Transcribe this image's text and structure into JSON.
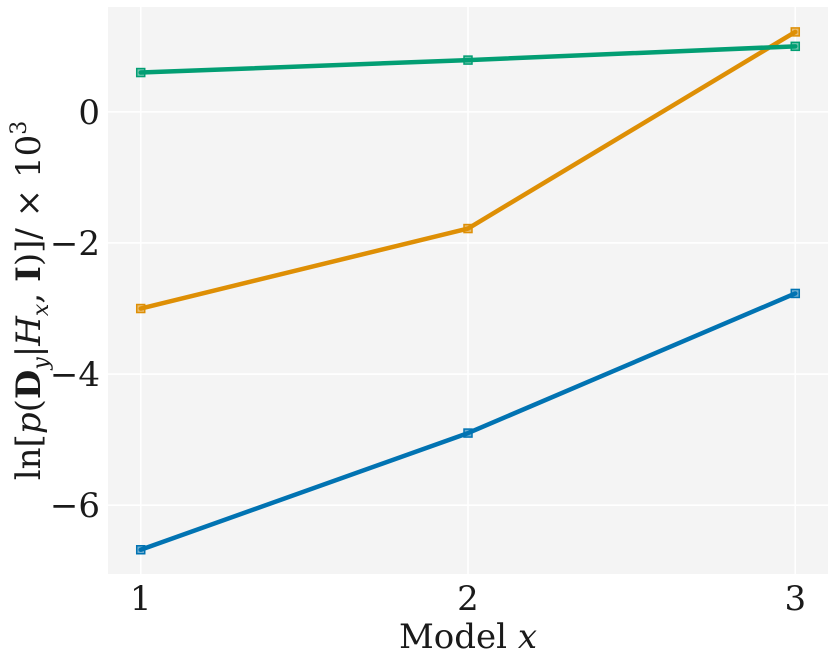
{
  "chart_data": {
    "type": "line",
    "xlabel": "Model x",
    "ylabel": "ln[p(D_y|H_x, I)]/ × 10^3",
    "x": [
      1,
      2,
      3
    ],
    "xticks": [
      1,
      2,
      3
    ],
    "xtick_labels": [
      "1",
      "2",
      "3"
    ],
    "xlim": [
      0.9,
      3.1
    ],
    "yticks": [
      -6,
      -4,
      -2,
      0
    ],
    "ytick_labels": [
      "−6",
      "−4",
      "−2",
      "0"
    ],
    "ylim": [
      -7.05,
      1.6
    ],
    "grid": true,
    "legend": false,
    "background": "#f4f4f4",
    "series": [
      {
        "values": [
          -6.68,
          -4.9,
          -2.77
        ],
        "color": "#0173b2",
        "marker": "square"
      },
      {
        "values": [
          -3.0,
          -1.78,
          1.22
        ],
        "color": "#de8f05",
        "marker": "square"
      },
      {
        "values": [
          0.6,
          0.79,
          1.0
        ],
        "color": "#029e73",
        "marker": "square"
      }
    ]
  }
}
